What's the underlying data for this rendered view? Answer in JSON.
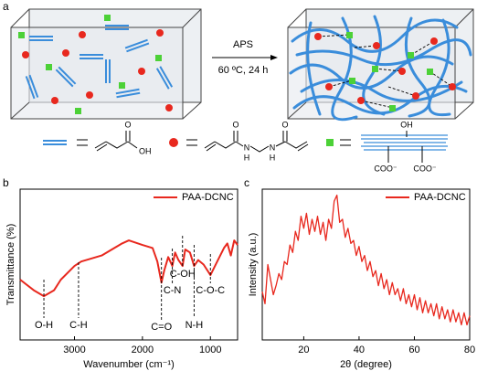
{
  "panel_a": {
    "label": "a",
    "arrow_label_top": "APS",
    "arrow_label_bottom": "60 ºC, 24 h",
    "acrylic_acid": {
      "carbonyl": "O",
      "hydroxyl": "OH"
    },
    "mba": {
      "carbonyl_left": "O",
      "carbonyl_right": "O",
      "amine_left": "N",
      "amine_right": "N",
      "h_left": "H",
      "h_right": "H"
    },
    "dcnc": {
      "hydroxyl": "OH",
      "carboxylate_left": "COO⁻",
      "carboxylate_right": "COO⁻"
    }
  },
  "chart_data": [
    {
      "type": "line",
      "panel_label": "b",
      "xlabel": "Wavenumber (cm⁻¹)",
      "ylabel": "Transmittance (%)",
      "xlim": [
        3800,
        600
      ],
      "xticks": [
        3000,
        2000,
        1000
      ],
      "ylim": [
        0,
        100
      ],
      "legend": "upper right",
      "x": [
        3800,
        3600,
        3450,
        3300,
        3200,
        3000,
        2900,
        2600,
        2300,
        2200,
        2000,
        1850,
        1780,
        1720,
        1680,
        1620,
        1560,
        1520,
        1470,
        1410,
        1370,
        1300,
        1240,
        1180,
        1100,
        1000,
        900,
        800,
        750,
        700,
        650,
        600
      ],
      "series": [
        {
          "name": "PAA-DCNC",
          "color": "#e8281e",
          "values": [
            40,
            33,
            29,
            33,
            40,
            49,
            52,
            56,
            64,
            66,
            63,
            61,
            52,
            38,
            46,
            55,
            49,
            58,
            53,
            49,
            60,
            58,
            49,
            53,
            50,
            43,
            52,
            61,
            64,
            56,
            66,
            63
          ]
        }
      ],
      "annotations": [
        {
          "label": "O-H",
          "x": 3450
        },
        {
          "label": "C-H",
          "x": 2940
        },
        {
          "label": "C=O",
          "x": 1720
        },
        {
          "label": "C-N",
          "x": 1560
        },
        {
          "label": "C-OH",
          "x": 1410
        },
        {
          "label": "N-H",
          "x": 1240
        },
        {
          "label": "C-O-C",
          "x": 1000
        }
      ]
    },
    {
      "type": "line",
      "panel_label": "c",
      "xlabel": "2θ (degree)",
      "ylabel": "Intensity (a.u.)",
      "xlim": [
        5,
        80
      ],
      "xticks": [
        20,
        40,
        60,
        80
      ],
      "ylim": [
        0,
        100
      ],
      "legend": "upper right",
      "x": [
        5,
        6,
        7,
        8,
        9,
        10,
        11,
        12,
        13,
        14,
        15,
        16,
        17,
        18,
        19,
        20,
        21,
        22,
        23,
        24,
        25,
        26,
        27,
        28,
        29,
        30,
        31,
        32,
        33,
        34,
        35,
        36,
        37,
        38,
        39,
        40,
        41,
        42,
        43,
        44,
        45,
        46,
        47,
        48,
        49,
        50,
        51,
        52,
        53,
        54,
        55,
        56,
        57,
        58,
        59,
        60,
        61,
        62,
        63,
        64,
        65,
        66,
        67,
        68,
        69,
        70,
        71,
        72,
        73,
        74,
        75,
        76,
        77,
        78,
        79,
        80
      ],
      "series": [
        {
          "name": "PAA-DCNC",
          "color": "#e8281e",
          "values": [
            32,
            24,
            50,
            40,
            30,
            36,
            44,
            40,
            52,
            50,
            63,
            58,
            72,
            66,
            82,
            74,
            84,
            70,
            80,
            72,
            82,
            70,
            78,
            66,
            80,
            74,
            92,
            96,
            78,
            80,
            68,
            74,
            64,
            66,
            56,
            62,
            52,
            56,
            46,
            52,
            42,
            46,
            36,
            44,
            34,
            40,
            30,
            38,
            30,
            34,
            26,
            34,
            24,
            30,
            22,
            30,
            20,
            28,
            18,
            26,
            18,
            24,
            16,
            24,
            14,
            22,
            14,
            20,
            12,
            20,
            12,
            18,
            10,
            18,
            10,
            16
          ]
        }
      ]
    }
  ]
}
